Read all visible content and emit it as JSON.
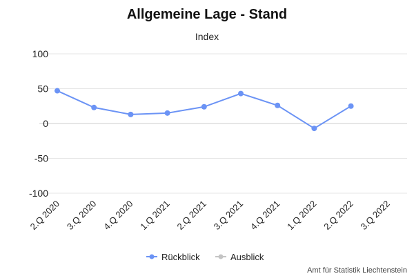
{
  "chart_data": {
    "type": "line",
    "title": "Allgemeine Lage - Stand",
    "subtitle": "Index",
    "categories": [
      "2.Q 2020",
      "3.Q 2020",
      "4.Q 2020",
      "1.Q 2021",
      "2.Q 2021",
      "3.Q 2021",
      "4.Q 2021",
      "1.Q 2022",
      "2.Q 2022",
      "3.Q 2022"
    ],
    "yticks": [
      100,
      50,
      0,
      -50,
      -100
    ],
    "ylim": [
      -100,
      100
    ],
    "grid": true,
    "legend_position": "bottom-center",
    "series": [
      {
        "name": "Rückblick",
        "color": "#6b93f5",
        "values": [
          47,
          23,
          13,
          15,
          24,
          43,
          26,
          -7,
          25,
          null
        ]
      },
      {
        "name": "Ausblick",
        "color": "#c4c4c4",
        "values": [
          null,
          null,
          null,
          null,
          null,
          null,
          null,
          null,
          null,
          null
        ]
      }
    ]
  },
  "credit": "Amt für Statistik Liechtenstein"
}
